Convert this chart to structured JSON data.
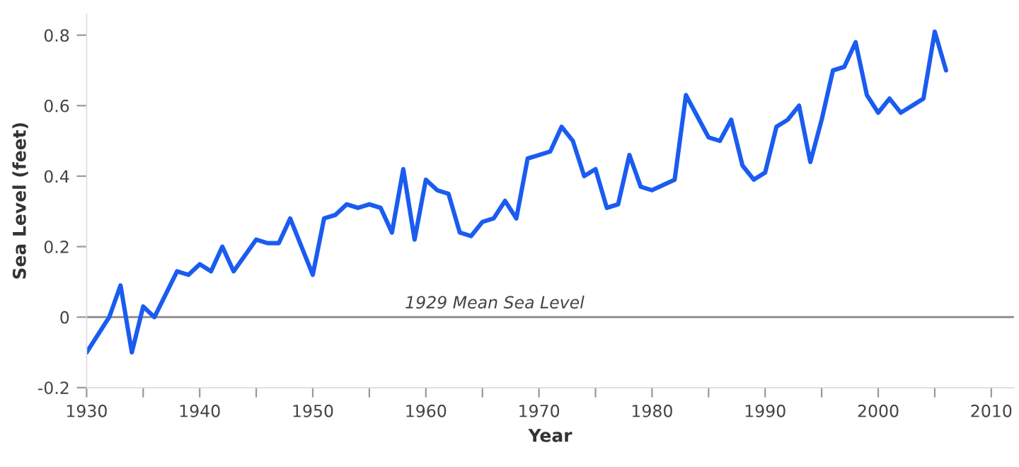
{
  "chart_data": {
    "type": "line",
    "xlabel": "Year",
    "ylabel": "Sea Level (feet)",
    "x": [
      1930,
      1932,
      1933,
      1934,
      1935,
      1936,
      1938,
      1939,
      1940,
      1941,
      1942,
      1943,
      1945,
      1946,
      1947,
      1948,
      1950,
      1951,
      1952,
      1953,
      1954,
      1955,
      1956,
      1957,
      1958,
      1959,
      1960,
      1961,
      1962,
      1963,
      1964,
      1965,
      1966,
      1967,
      1968,
      1969,
      1970,
      1971,
      1972,
      1973,
      1974,
      1975,
      1976,
      1977,
      1978,
      1979,
      1980,
      1982,
      1983,
      1984,
      1985,
      1986,
      1987,
      1988,
      1989,
      1990,
      1991,
      1992,
      1993,
      1994,
      1995,
      1996,
      1997,
      1998,
      1999,
      2000,
      2001,
      2002,
      2003,
      2004,
      2005,
      2006
    ],
    "series": [
      {
        "color": "#1a5cf0",
        "values": [
          -0.1,
          0.0,
          0.09,
          -0.1,
          0.03,
          0.0,
          0.13,
          0.12,
          0.15,
          0.13,
          0.2,
          0.13,
          0.22,
          0.21,
          0.21,
          0.28,
          0.12,
          0.28,
          0.29,
          0.32,
          0.31,
          0.32,
          0.31,
          0.24,
          0.42,
          0.22,
          0.39,
          0.36,
          0.35,
          0.24,
          0.23,
          0.27,
          0.28,
          0.33,
          0.28,
          0.45,
          0.46,
          0.47,
          0.54,
          0.5,
          0.4,
          0.42,
          0.31,
          0.32,
          0.46,
          0.37,
          0.36,
          0.39,
          0.63,
          0.57,
          0.51,
          0.5,
          0.56,
          0.43,
          0.39,
          0.41,
          0.54,
          0.56,
          0.6,
          0.44,
          0.56,
          0.7,
          0.71,
          0.78,
          0.63,
          0.58,
          0.62,
          0.58,
          0.6,
          0.62,
          0.81,
          0.7
        ]
      }
    ],
    "xlim": [
      1930,
      2012
    ],
    "ylim": [
      -0.2,
      0.86
    ],
    "xticks": [
      1930,
      {
        "value": 1935,
        "label": null
      },
      1940,
      {
        "value": 1945,
        "label": null
      },
      1950,
      {
        "value": 1955,
        "label": null
      },
      1960,
      {
        "value": 1965,
        "label": null
      },
      1970,
      {
        "value": 1975,
        "label": null
      },
      1980,
      {
        "value": 1985,
        "label": null
      },
      1990,
      {
        "value": 1995,
        "label": null
      },
      2000,
      {
        "value": 2005,
        "label": null
      },
      2010
    ],
    "yticks": [
      -0.2,
      0,
      0.2,
      0.4,
      0.6,
      0.8
    ],
    "ref_lines": [
      {
        "axis": "y",
        "value": 0,
        "label": "1929 Mean Sea Level",
        "color": "#888888"
      }
    ],
    "grid": false,
    "marker": "none",
    "line_style": "solid"
  }
}
